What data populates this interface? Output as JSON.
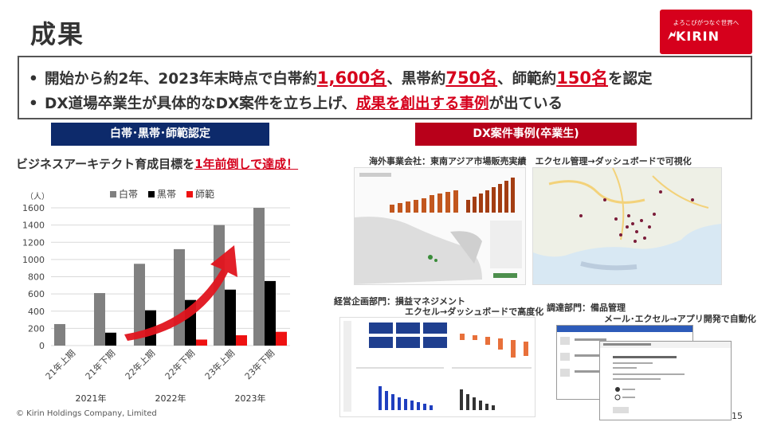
{
  "title": "成果",
  "logo": {
    "tagline": "よろこびがつなぐ世界へ",
    "brand": "KIRIN"
  },
  "summary": {
    "line1": {
      "bullet": "•",
      "t1": "開始から約2年、2023年末時点で白帯約",
      "v1": "1,600名",
      "t2": "、黒帯約",
      "v2": "750名",
      "t3": "、師範約",
      "v3": "150名",
      "t4": "を認定"
    },
    "line2": {
      "bullet": "•",
      "t1": "DX道場卒業生が具体的なDX案件を立ち上げ、",
      "h": "成果を創出する事例",
      "t2": "が出ている"
    }
  },
  "left_header": "白帯･黒帯･師範認定",
  "right_header": "DX案件事例(卒業生)",
  "goal": {
    "t1": "ビジネスアーキテクト育成目標を",
    "h": "1年前倒しで達成！"
  },
  "chart_data": {
    "type": "bar",
    "unit_label": "（人）",
    "categories": [
      "21年上期",
      "21年下期",
      "22年上期",
      "22年下期",
      "23年上期",
      "23年下期"
    ],
    "series": [
      {
        "name": "白帯",
        "color": "#808080",
        "values": [
          250,
          610,
          950,
          1120,
          1400,
          1600
        ]
      },
      {
        "name": "黒帯",
        "color": "#000000",
        "values": [
          0,
          150,
          410,
          530,
          650,
          750
        ]
      },
      {
        "name": "師範",
        "color": "#ee1111",
        "values": [
          0,
          0,
          0,
          70,
          120,
          160
        ]
      }
    ],
    "yticks": [
      "0",
      "200",
      "400",
      "600",
      "800",
      "1000",
      "1200",
      "1400",
      "1600"
    ],
    "ylim": [
      0,
      1600
    ],
    "years": [
      "2021年",
      "2022年",
      "2023年"
    ],
    "legend_position": "top"
  },
  "cases": {
    "case1": "海外事業会社：東南アジア市場販売実績　エクセル管理→ダッシュボードで可視化",
    "case2a": "経営企画部門：損益マネジメント",
    "case2b": "エクセル→ダッシュボードで高度化",
    "case3a": "調達部門：備品管理",
    "case3b": "メール･エクセル→アプリ開発で自動化"
  },
  "footer": "© Kirin Holdings Company, Limited",
  "page_number": "15"
}
